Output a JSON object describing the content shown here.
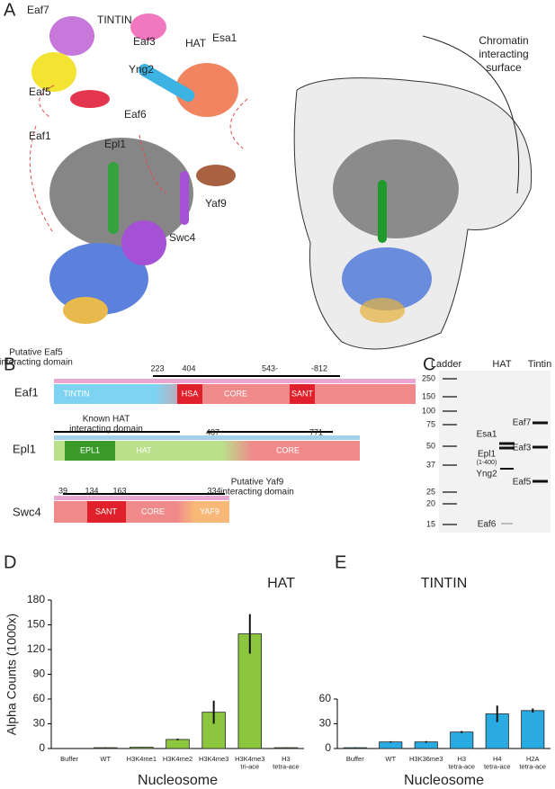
{
  "panel_labels": [
    "A",
    "B",
    "C",
    "D",
    "E"
  ],
  "panel_a": {
    "labels": [
      "TINTIN",
      "Eaf7",
      "Eaf3",
      "HAT",
      "Esa1",
      "Eaf5",
      "Yng2",
      "Eaf6",
      "Eaf1",
      "Epl1",
      "Yaf9",
      "Swc4"
    ],
    "surface_label": [
      "Chromatin",
      "interacting",
      "surface"
    ]
  },
  "panel_b": {
    "eaf1": {
      "name": "Eaf1",
      "note": "Putative Eaf5",
      "note2": "interacting domain",
      "numbers": [
        "223",
        "404",
        "543-",
        "-812"
      ],
      "domains": [
        "TINTIN",
        "HSA",
        "CORE",
        "SANT"
      ]
    },
    "epl1": {
      "name": "Epl1",
      "note": "Known HAT",
      "note2": "interacting domain",
      "numbers": [
        "487-",
        "-771"
      ],
      "domains": [
        "EPL1",
        "HAT",
        "CORE"
      ]
    },
    "swc4": {
      "name": "Swc4",
      "note": "Putative Yaf9",
      "note2": "interacting domain",
      "numbers": [
        "39",
        "134",
        "163",
        "334"
      ],
      "domains": [
        "SANT",
        "CORE",
        "YAF9"
      ]
    }
  },
  "panel_c": {
    "headers": [
      "Ladder",
      "HAT",
      "Tintin"
    ],
    "ladder": [
      "250",
      "150",
      "100",
      "75",
      "50",
      "37",
      "25",
      "20",
      "15"
    ],
    "hat_labels": [
      "Esa1",
      "Epl1",
      "(1-400)",
      "Yng2",
      "Eaf6"
    ],
    "tintin_labels": [
      "Eaf7",
      "Eaf3",
      "Eaf5"
    ]
  },
  "chart_data": [
    {
      "type": "bar",
      "title": "HAT",
      "y_label": "Alpha Counts (1000x)",
      "x_label": "Nucleosome",
      "color": "#8cc63f",
      "categories": [
        "Buffer",
        "WT",
        "H3K4me1",
        "H3K4me2",
        "H3K4me3",
        "H3K4me3\ntri-ace",
        "H3\ntetra-ace"
      ],
      "values": [
        0,
        1,
        1.5,
        11,
        44,
        139,
        1
      ],
      "errors": [
        0,
        0.3,
        0.3,
        1,
        14,
        24,
        0.3
      ],
      "ylim": [
        0,
        180
      ],
      "yticks": [
        0,
        30,
        60,
        90,
        120,
        150,
        180
      ]
    },
    {
      "type": "bar",
      "title": "TINTIN",
      "x_label": "Nucleosome",
      "color": "#29abe2",
      "categories": [
        "Buffer",
        "WT",
        "H3K36me3",
        "H3\ntetra-ace",
        "H4\ntetra-ace",
        "H2A\ntetra-ace"
      ],
      "values": [
        1,
        8,
        8,
        20,
        42,
        46
      ],
      "errors": [
        0.3,
        0.8,
        1,
        1.2,
        10,
        2.5
      ],
      "ylim": [
        0,
        60
      ],
      "yticks": [
        0,
        30,
        60
      ]
    }
  ]
}
